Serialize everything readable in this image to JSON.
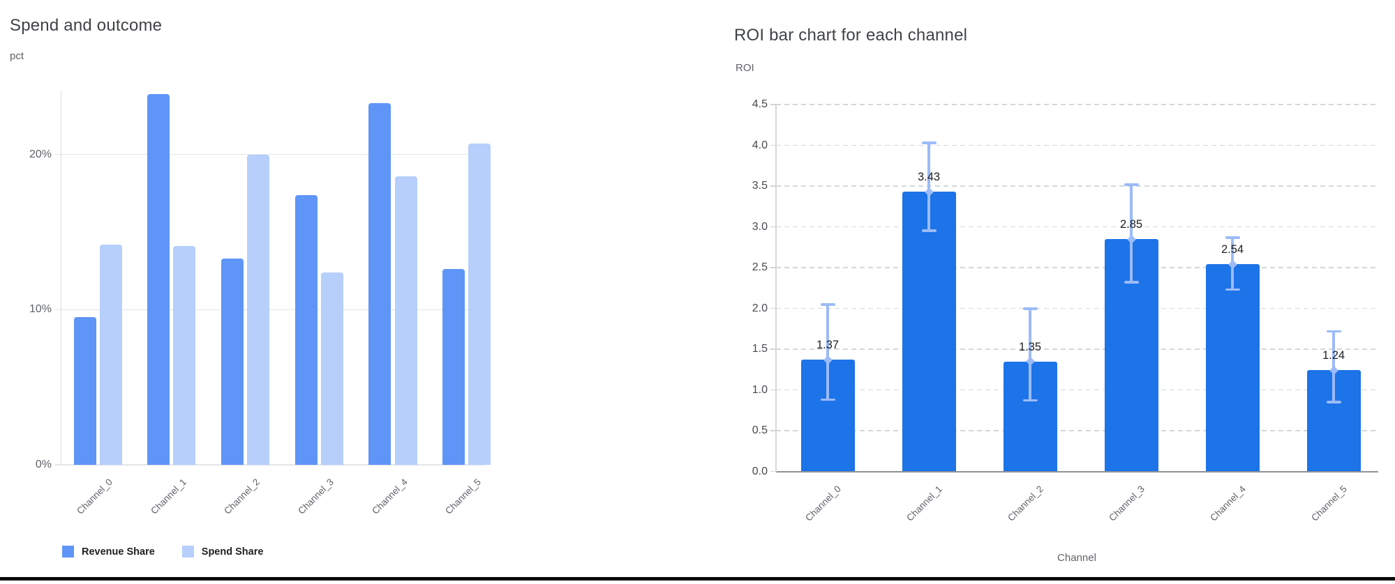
{
  "chart_data": [
    {
      "type": "bar",
      "title": "Spend and outcome",
      "ylabel": "pct",
      "xlabel": "",
      "categories": [
        "Channel_0",
        "Channel_1",
        "Channel_2",
        "Channel_3",
        "Channel_4",
        "Channel_5"
      ],
      "series": [
        {
          "name": "Revenue Share",
          "color": "#5f95f7",
          "values": [
            9.5,
            23.9,
            13.3,
            17.4,
            23.3,
            12.6
          ]
        },
        {
          "name": "Spend Share",
          "color": "#b6cffb",
          "values": [
            14.2,
            14.1,
            20.0,
            12.4,
            18.6,
            20.7
          ]
        }
      ],
      "unit": "percent",
      "y_ticks": [
        {
          "label": "0%",
          "value": 0
        },
        {
          "label": "10%",
          "value": 10
        },
        {
          "label": "20%",
          "value": 20
        }
      ],
      "ylim": [
        0,
        24.1
      ],
      "grid": "solid-horizontal",
      "legend_position": "bottom-left"
    },
    {
      "type": "bar",
      "title": "ROI bar chart for each channel",
      "ylabel": "ROI",
      "xlabel": "Channel",
      "categories": [
        "Channel_0",
        "Channel_1",
        "Channel_2",
        "Channel_3",
        "Channel_4",
        "Channel_5"
      ],
      "values": [
        1.37,
        3.43,
        1.35,
        2.85,
        2.54,
        1.24
      ],
      "value_labels": [
        "1.37",
        "3.43",
        "1.35",
        "2.85",
        "2.54",
        "1.24"
      ],
      "error_bars": {
        "low": [
          0.88,
          2.95,
          0.87,
          2.32,
          2.23,
          0.85
        ],
        "high": [
          2.05,
          4.03,
          2.0,
          3.52,
          2.87,
          1.72
        ],
        "color": "#9cbbf8"
      },
      "bar_color": "#1d73e8",
      "y_ticks": [
        {
          "label": "0.0",
          "value": 0
        },
        {
          "label": "0.5",
          "value": 0.5
        },
        {
          "label": "1.0",
          "value": 1
        },
        {
          "label": "1.5",
          "value": 1.5
        },
        {
          "label": "2.0",
          "value": 2
        },
        {
          "label": "2.5",
          "value": 2.5
        },
        {
          "label": "3.0",
          "value": 3
        },
        {
          "label": "3.5",
          "value": 3.5
        },
        {
          "label": "4.0",
          "value": 4
        },
        {
          "label": "4.5",
          "value": 4.5
        }
      ],
      "ylim": [
        0,
        4.5
      ],
      "grid": "dashed-horizontal",
      "legend_position": "none"
    }
  ]
}
